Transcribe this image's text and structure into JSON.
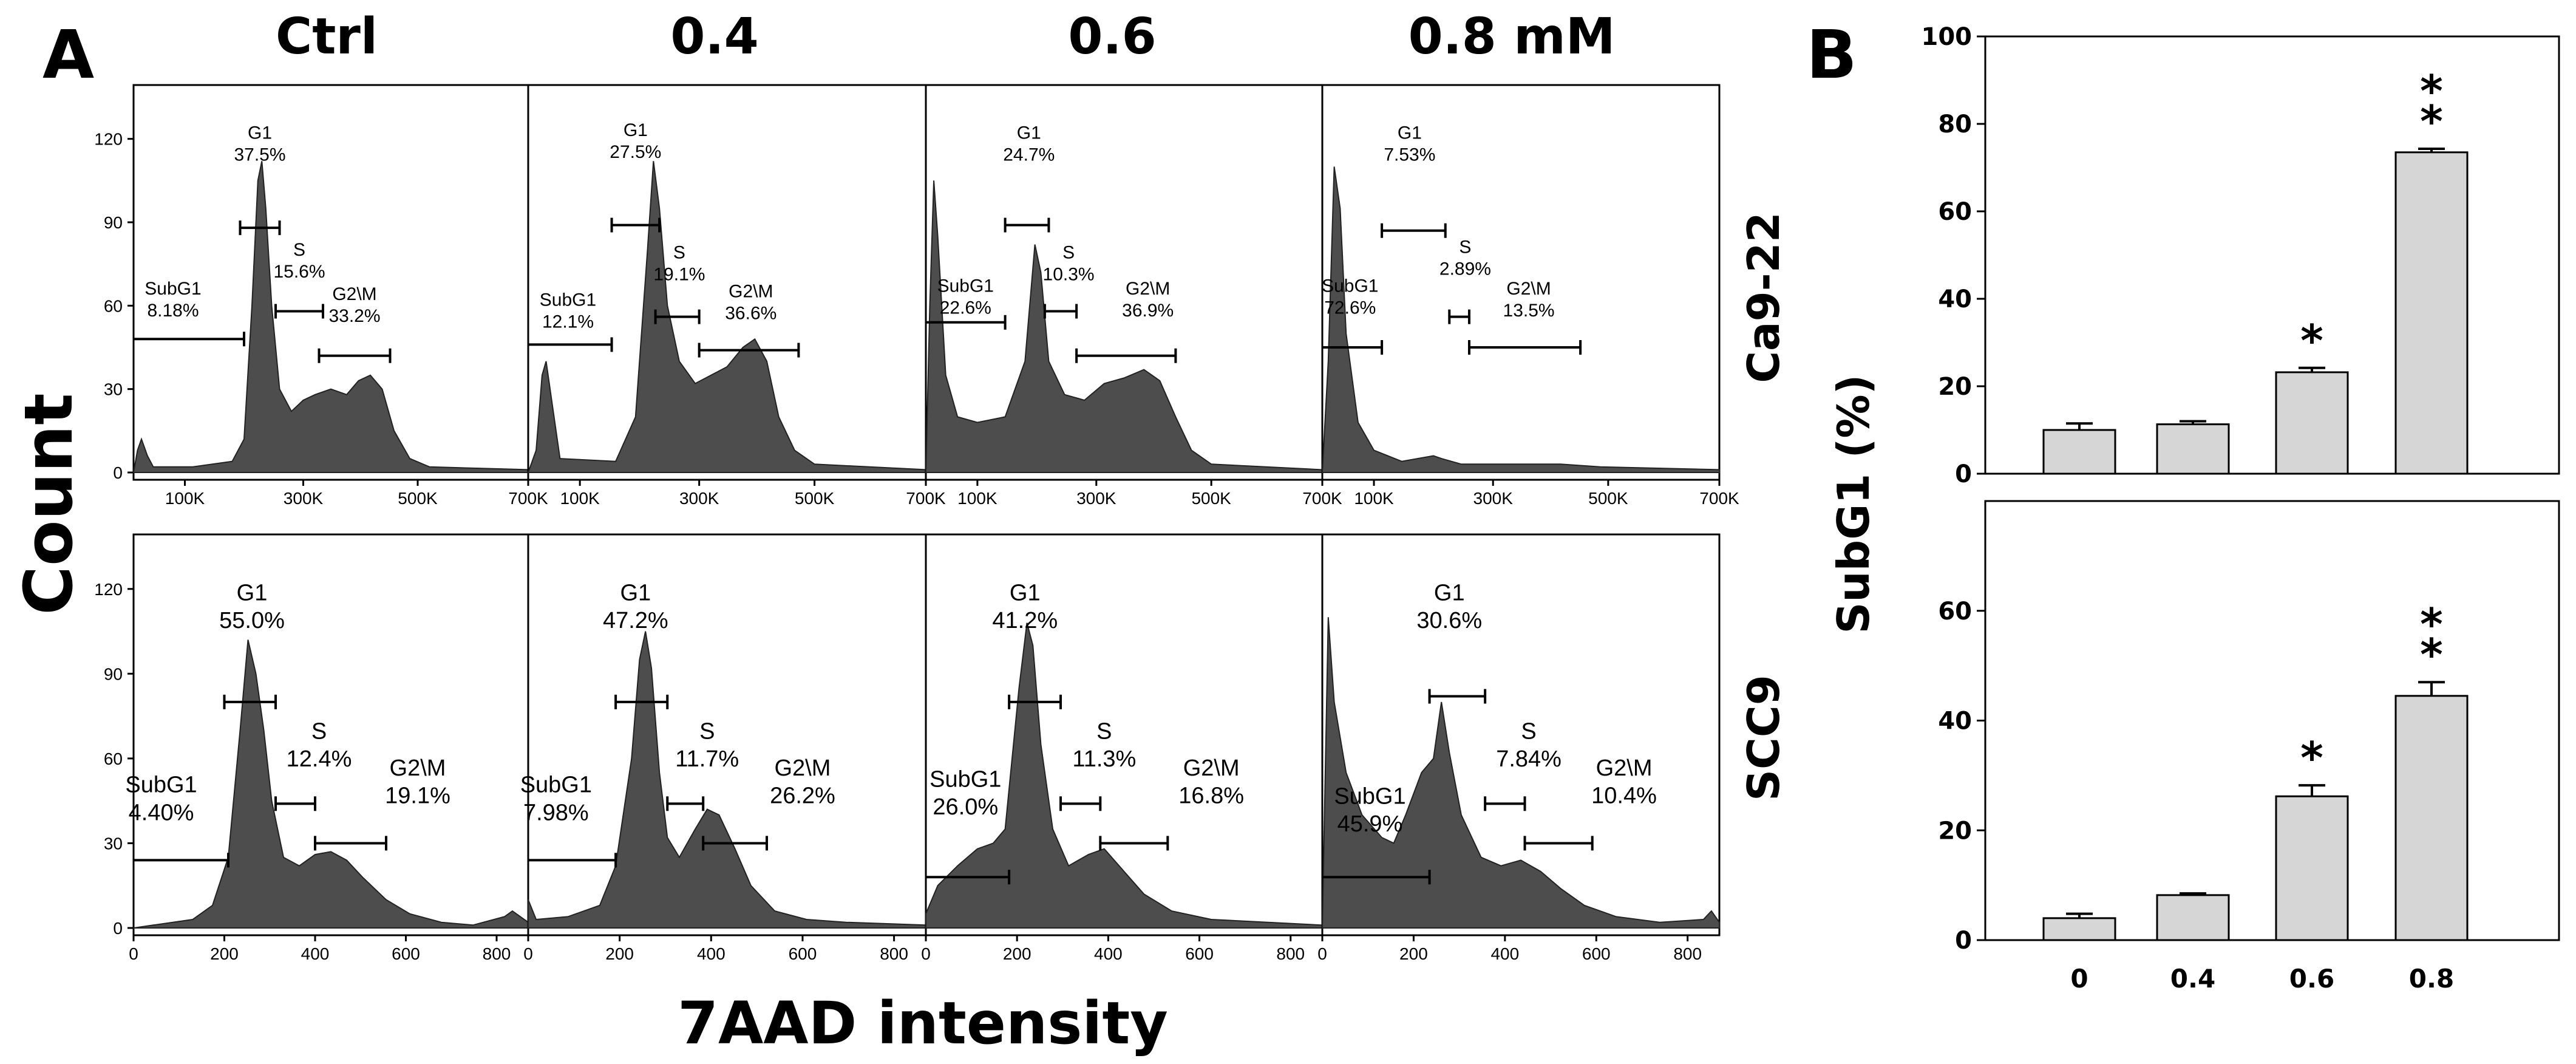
{
  "panel_a_label": "A",
  "panel_b_label": "B",
  "y_label_a": "Count",
  "x_label_a": "7AAD intensity",
  "y_label_b": "SubG1 (%)",
  "columns": [
    "Ctrl",
    "0.4",
    "0.6",
    "0.8 mM"
  ],
  "rows": [
    "Ca9-22",
    "SCC9"
  ],
  "chart_data": [
    {
      "type": "area",
      "row": "Ca9-22",
      "x_ticks": [
        "100K",
        "300K",
        "500K",
        "700K"
      ],
      "y_ticks": [
        "0",
        "30",
        "60",
        "90",
        "120"
      ],
      "ylim": [
        0,
        135
      ],
      "panels": [
        {
          "condition": "Ctrl",
          "gates": [
            {
              "name": "SubG1",
              "percent": "8.18%"
            },
            {
              "name": "G1",
              "percent": "37.5%"
            },
            {
              "name": "S",
              "percent": "15.6%"
            },
            {
              "name": "G2\\M",
              "percent": "33.2%"
            }
          ],
          "curve": [
            [
              0.0,
              0
            ],
            [
              0.01,
              8
            ],
            [
              0.02,
              12
            ],
            [
              0.035,
              6
            ],
            [
              0.05,
              2
            ],
            [
              0.15,
              2
            ],
            [
              0.25,
              4
            ],
            [
              0.28,
              12
            ],
            [
              0.3,
              60
            ],
            [
              0.315,
              105
            ],
            [
              0.325,
              112
            ],
            [
              0.335,
              95
            ],
            [
              0.35,
              60
            ],
            [
              0.37,
              30
            ],
            [
              0.4,
              22
            ],
            [
              0.43,
              26
            ],
            [
              0.46,
              28
            ],
            [
              0.5,
              30
            ],
            [
              0.54,
              28
            ],
            [
              0.57,
              33
            ],
            [
              0.6,
              35
            ],
            [
              0.63,
              30
            ],
            [
              0.66,
              15
            ],
            [
              0.7,
              5
            ],
            [
              0.75,
              2
            ],
            [
              1.0,
              1
            ]
          ]
        },
        {
          "condition": "0.4",
          "gates": [
            {
              "name": "SubG1",
              "percent": "12.1%"
            },
            {
              "name": "G1",
              "percent": "27.5%"
            },
            {
              "name": "S",
              "percent": "19.1%"
            },
            {
              "name": "G2\\M",
              "percent": "36.6%"
            }
          ],
          "curve": [
            [
              0.0,
              0
            ],
            [
              0.02,
              8
            ],
            [
              0.035,
              35
            ],
            [
              0.045,
              40
            ],
            [
              0.06,
              25
            ],
            [
              0.08,
              5
            ],
            [
              0.22,
              4
            ],
            [
              0.27,
              20
            ],
            [
              0.3,
              80
            ],
            [
              0.315,
              112
            ],
            [
              0.33,
              95
            ],
            [
              0.35,
              60
            ],
            [
              0.38,
              40
            ],
            [
              0.42,
              32
            ],
            [
              0.46,
              35
            ],
            [
              0.5,
              38
            ],
            [
              0.54,
              45
            ],
            [
              0.57,
              48
            ],
            [
              0.6,
              40
            ],
            [
              0.63,
              20
            ],
            [
              0.67,
              8
            ],
            [
              0.72,
              3
            ],
            [
              1.0,
              1
            ]
          ]
        },
        {
          "condition": "0.6",
          "gates": [
            {
              "name": "SubG1",
              "percent": "22.6%"
            },
            {
              "name": "G1",
              "percent": "24.7%"
            },
            {
              "name": "S",
              "percent": "10.3%"
            },
            {
              "name": "G2\\M",
              "percent": "36.9%"
            }
          ],
          "curve": [
            [
              0.0,
              0
            ],
            [
              0.01,
              60
            ],
            [
              0.02,
              105
            ],
            [
              0.03,
              85
            ],
            [
              0.05,
              35
            ],
            [
              0.08,
              20
            ],
            [
              0.13,
              18
            ],
            [
              0.2,
              20
            ],
            [
              0.25,
              40
            ],
            [
              0.275,
              82
            ],
            [
              0.29,
              72
            ],
            [
              0.31,
              40
            ],
            [
              0.35,
              28
            ],
            [
              0.4,
              26
            ],
            [
              0.45,
              32
            ],
            [
              0.5,
              34
            ],
            [
              0.55,
              37
            ],
            [
              0.59,
              33
            ],
            [
              0.63,
              20
            ],
            [
              0.67,
              8
            ],
            [
              0.72,
              3
            ],
            [
              1.0,
              1
            ]
          ]
        },
        {
          "condition": "0.8 mM",
          "gates": [
            {
              "name": "SubG1",
              "percent": "72.6%"
            },
            {
              "name": "G1",
              "percent": "7.53%"
            },
            {
              "name": "S",
              "percent": "2.89%"
            },
            {
              "name": "G2\\M",
              "percent": "13.5%"
            }
          ],
          "curve": [
            [
              0.0,
              0
            ],
            [
              0.015,
              40
            ],
            [
              0.03,
              110
            ],
            [
              0.045,
              95
            ],
            [
              0.06,
              50
            ],
            [
              0.09,
              18
            ],
            [
              0.13,
              8
            ],
            [
              0.2,
              4
            ],
            [
              0.28,
              6
            ],
            [
              0.3,
              5
            ],
            [
              0.35,
              3
            ],
            [
              0.45,
              3
            ],
            [
              0.55,
              3
            ],
            [
              0.6,
              3
            ],
            [
              0.7,
              2
            ],
            [
              1.0,
              1
            ]
          ]
        }
      ]
    },
    {
      "type": "area",
      "row": "SCC9",
      "x_ticks": [
        "0",
        "200",
        "400",
        "600",
        "800"
      ],
      "y_ticks": [
        "0",
        "30",
        "60",
        "90",
        "120"
      ],
      "ylim": [
        0,
        135
      ],
      "panels": [
        {
          "condition": "Ctrl",
          "gates": [
            {
              "name": "SubG1",
              "percent": "4.40%"
            },
            {
              "name": "G1",
              "percent": "55.0%"
            },
            {
              "name": "S",
              "percent": "12.4%"
            },
            {
              "name": "G2\\M",
              "percent": "19.1%"
            }
          ],
          "curve": [
            [
              0.0,
              0
            ],
            [
              0.05,
              1
            ],
            [
              0.15,
              3
            ],
            [
              0.2,
              8
            ],
            [
              0.24,
              25
            ],
            [
              0.27,
              70
            ],
            [
              0.29,
              102
            ],
            [
              0.31,
              90
            ],
            [
              0.33,
              70
            ],
            [
              0.35,
              45
            ],
            [
              0.38,
              25
            ],
            [
              0.42,
              22
            ],
            [
              0.46,
              26
            ],
            [
              0.5,
              27
            ],
            [
              0.54,
              24
            ],
            [
              0.58,
              18
            ],
            [
              0.64,
              10
            ],
            [
              0.7,
              5
            ],
            [
              0.78,
              2
            ],
            [
              0.86,
              1
            ],
            [
              0.94,
              4
            ],
            [
              0.96,
              6
            ],
            [
              1.0,
              2
            ]
          ]
        },
        {
          "condition": "0.4",
          "gates": [
            {
              "name": "SubG1",
              "percent": "7.98%"
            },
            {
              "name": "G1",
              "percent": "47.2%"
            },
            {
              "name": "S",
              "percent": "11.7%"
            },
            {
              "name": "G2\\M",
              "percent": "26.2%"
            }
          ],
          "curve": [
            [
              0.0,
              10
            ],
            [
              0.02,
              3
            ],
            [
              0.1,
              4
            ],
            [
              0.18,
              8
            ],
            [
              0.22,
              22
            ],
            [
              0.26,
              60
            ],
            [
              0.28,
              95
            ],
            [
              0.295,
              105
            ],
            [
              0.31,
              92
            ],
            [
              0.33,
              55
            ],
            [
              0.35,
              32
            ],
            [
              0.38,
              25
            ],
            [
              0.42,
              35
            ],
            [
              0.45,
              42
            ],
            [
              0.48,
              40
            ],
            [
              0.52,
              28
            ],
            [
              0.56,
              15
            ],
            [
              0.62,
              6
            ],
            [
              0.7,
              3
            ],
            [
              0.8,
              2
            ],
            [
              1.0,
              1
            ]
          ]
        },
        {
          "condition": "0.6",
          "gates": [
            {
              "name": "SubG1",
              "percent": "26.0%"
            },
            {
              "name": "G1",
              "percent": "41.2%"
            },
            {
              "name": "S",
              "percent": "11.3%"
            },
            {
              "name": "G2\\M",
              "percent": "16.8%"
            }
          ],
          "curve": [
            [
              0.0,
              5
            ],
            [
              0.03,
              15
            ],
            [
              0.08,
              22
            ],
            [
              0.13,
              28
            ],
            [
              0.17,
              30
            ],
            [
              0.2,
              35
            ],
            [
              0.235,
              85
            ],
            [
              0.255,
              108
            ],
            [
              0.27,
              100
            ],
            [
              0.29,
              65
            ],
            [
              0.32,
              35
            ],
            [
              0.36,
              22
            ],
            [
              0.41,
              26
            ],
            [
              0.45,
              28
            ],
            [
              0.5,
              20
            ],
            [
              0.55,
              12
            ],
            [
              0.62,
              6
            ],
            [
              0.72,
              3
            ],
            [
              1.0,
              1
            ]
          ]
        },
        {
          "condition": "0.8 mM",
          "gates": [
            {
              "name": "SubG1",
              "percent": "45.9%"
            },
            {
              "name": "G1",
              "percent": "30.6%"
            },
            {
              "name": "S",
              "percent": "7.84%"
            },
            {
              "name": "G2\\M",
              "percent": "10.4%"
            }
          ],
          "curve": [
            [
              0.0,
              0
            ],
            [
              0.015,
              110
            ],
            [
              0.03,
              80
            ],
            [
              0.06,
              55
            ],
            [
              0.1,
              40
            ],
            [
              0.15,
              32
            ],
            [
              0.18,
              30
            ],
            [
              0.21,
              40
            ],
            [
              0.25,
              55
            ],
            [
              0.28,
              60
            ],
            [
              0.3,
              80
            ],
            [
              0.32,
              62
            ],
            [
              0.35,
              40
            ],
            [
              0.4,
              25
            ],
            [
              0.45,
              22
            ],
            [
              0.5,
              24
            ],
            [
              0.55,
              20
            ],
            [
              0.6,
              14
            ],
            [
              0.66,
              8
            ],
            [
              0.74,
              4
            ],
            [
              0.85,
              2
            ],
            [
              0.96,
              3
            ],
            [
              0.98,
              6
            ],
            [
              1.0,
              2
            ]
          ]
        }
      ]
    },
    {
      "type": "bar",
      "row": "Ca9-22",
      "categories": [
        "0",
        "0.4",
        "0.6",
        "0.8"
      ],
      "values": [
        10,
        11.3,
        23.2,
        73.5
      ],
      "errors": [
        1.5,
        0.7,
        1.0,
        0.8
      ],
      "significance": [
        "",
        "",
        "*",
        "**"
      ],
      "ylim": [
        0,
        100
      ],
      "y_ticks": [
        0,
        20,
        40,
        60,
        80,
        100
      ]
    },
    {
      "type": "bar",
      "row": "SCC9",
      "categories": [
        "0",
        "0.4",
        "0.6",
        "0.8"
      ],
      "values": [
        4,
        8.2,
        26.2,
        44.5
      ],
      "errors": [
        0.8,
        0.3,
        2.0,
        2.5
      ],
      "significance": [
        "",
        "",
        "*",
        "**"
      ],
      "ylim": [
        0,
        80
      ],
      "y_ticks": [
        0,
        20,
        40,
        60
      ]
    }
  ]
}
